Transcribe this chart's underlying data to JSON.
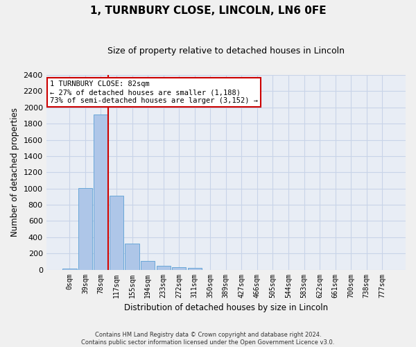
{
  "title": "1, TURNBURY CLOSE, LINCOLN, LN6 0FE",
  "subtitle": "Size of property relative to detached houses in Lincoln",
  "xlabel": "Distribution of detached houses by size in Lincoln",
  "ylabel": "Number of detached properties",
  "bar_labels": [
    "0sqm",
    "39sqm",
    "78sqm",
    "117sqm",
    "155sqm",
    "194sqm",
    "233sqm",
    "272sqm",
    "311sqm",
    "350sqm",
    "389sqm",
    "427sqm",
    "466sqm",
    "505sqm",
    "544sqm",
    "583sqm",
    "622sqm",
    "661sqm",
    "700sqm",
    "738sqm",
    "777sqm"
  ],
  "bar_values": [
    15,
    1010,
    1910,
    910,
    320,
    110,
    50,
    30,
    18,
    0,
    0,
    0,
    0,
    0,
    0,
    0,
    0,
    0,
    0,
    0,
    0
  ],
  "bar_color": "#aec6e8",
  "bar_edge_color": "#5a9fd4",
  "ylim": [
    0,
    2400
  ],
  "yticks": [
    0,
    200,
    400,
    600,
    800,
    1000,
    1200,
    1400,
    1600,
    1800,
    2000,
    2200,
    2400
  ],
  "vline_color": "#cc0000",
  "annotation_title": "1 TURNBURY CLOSE: 82sqm",
  "annotation_line1": "← 27% of detached houses are smaller (1,188)",
  "annotation_line2": "73% of semi-detached houses are larger (3,152) →",
  "annotation_box_color": "#cc0000",
  "grid_color": "#c8d4e8",
  "bg_color": "#e8edf5",
  "fig_bg_color": "#f0f0f0",
  "footer_line1": "Contains HM Land Registry data © Crown copyright and database right 2024.",
  "footer_line2": "Contains public sector information licensed under the Open Government Licence v3.0."
}
